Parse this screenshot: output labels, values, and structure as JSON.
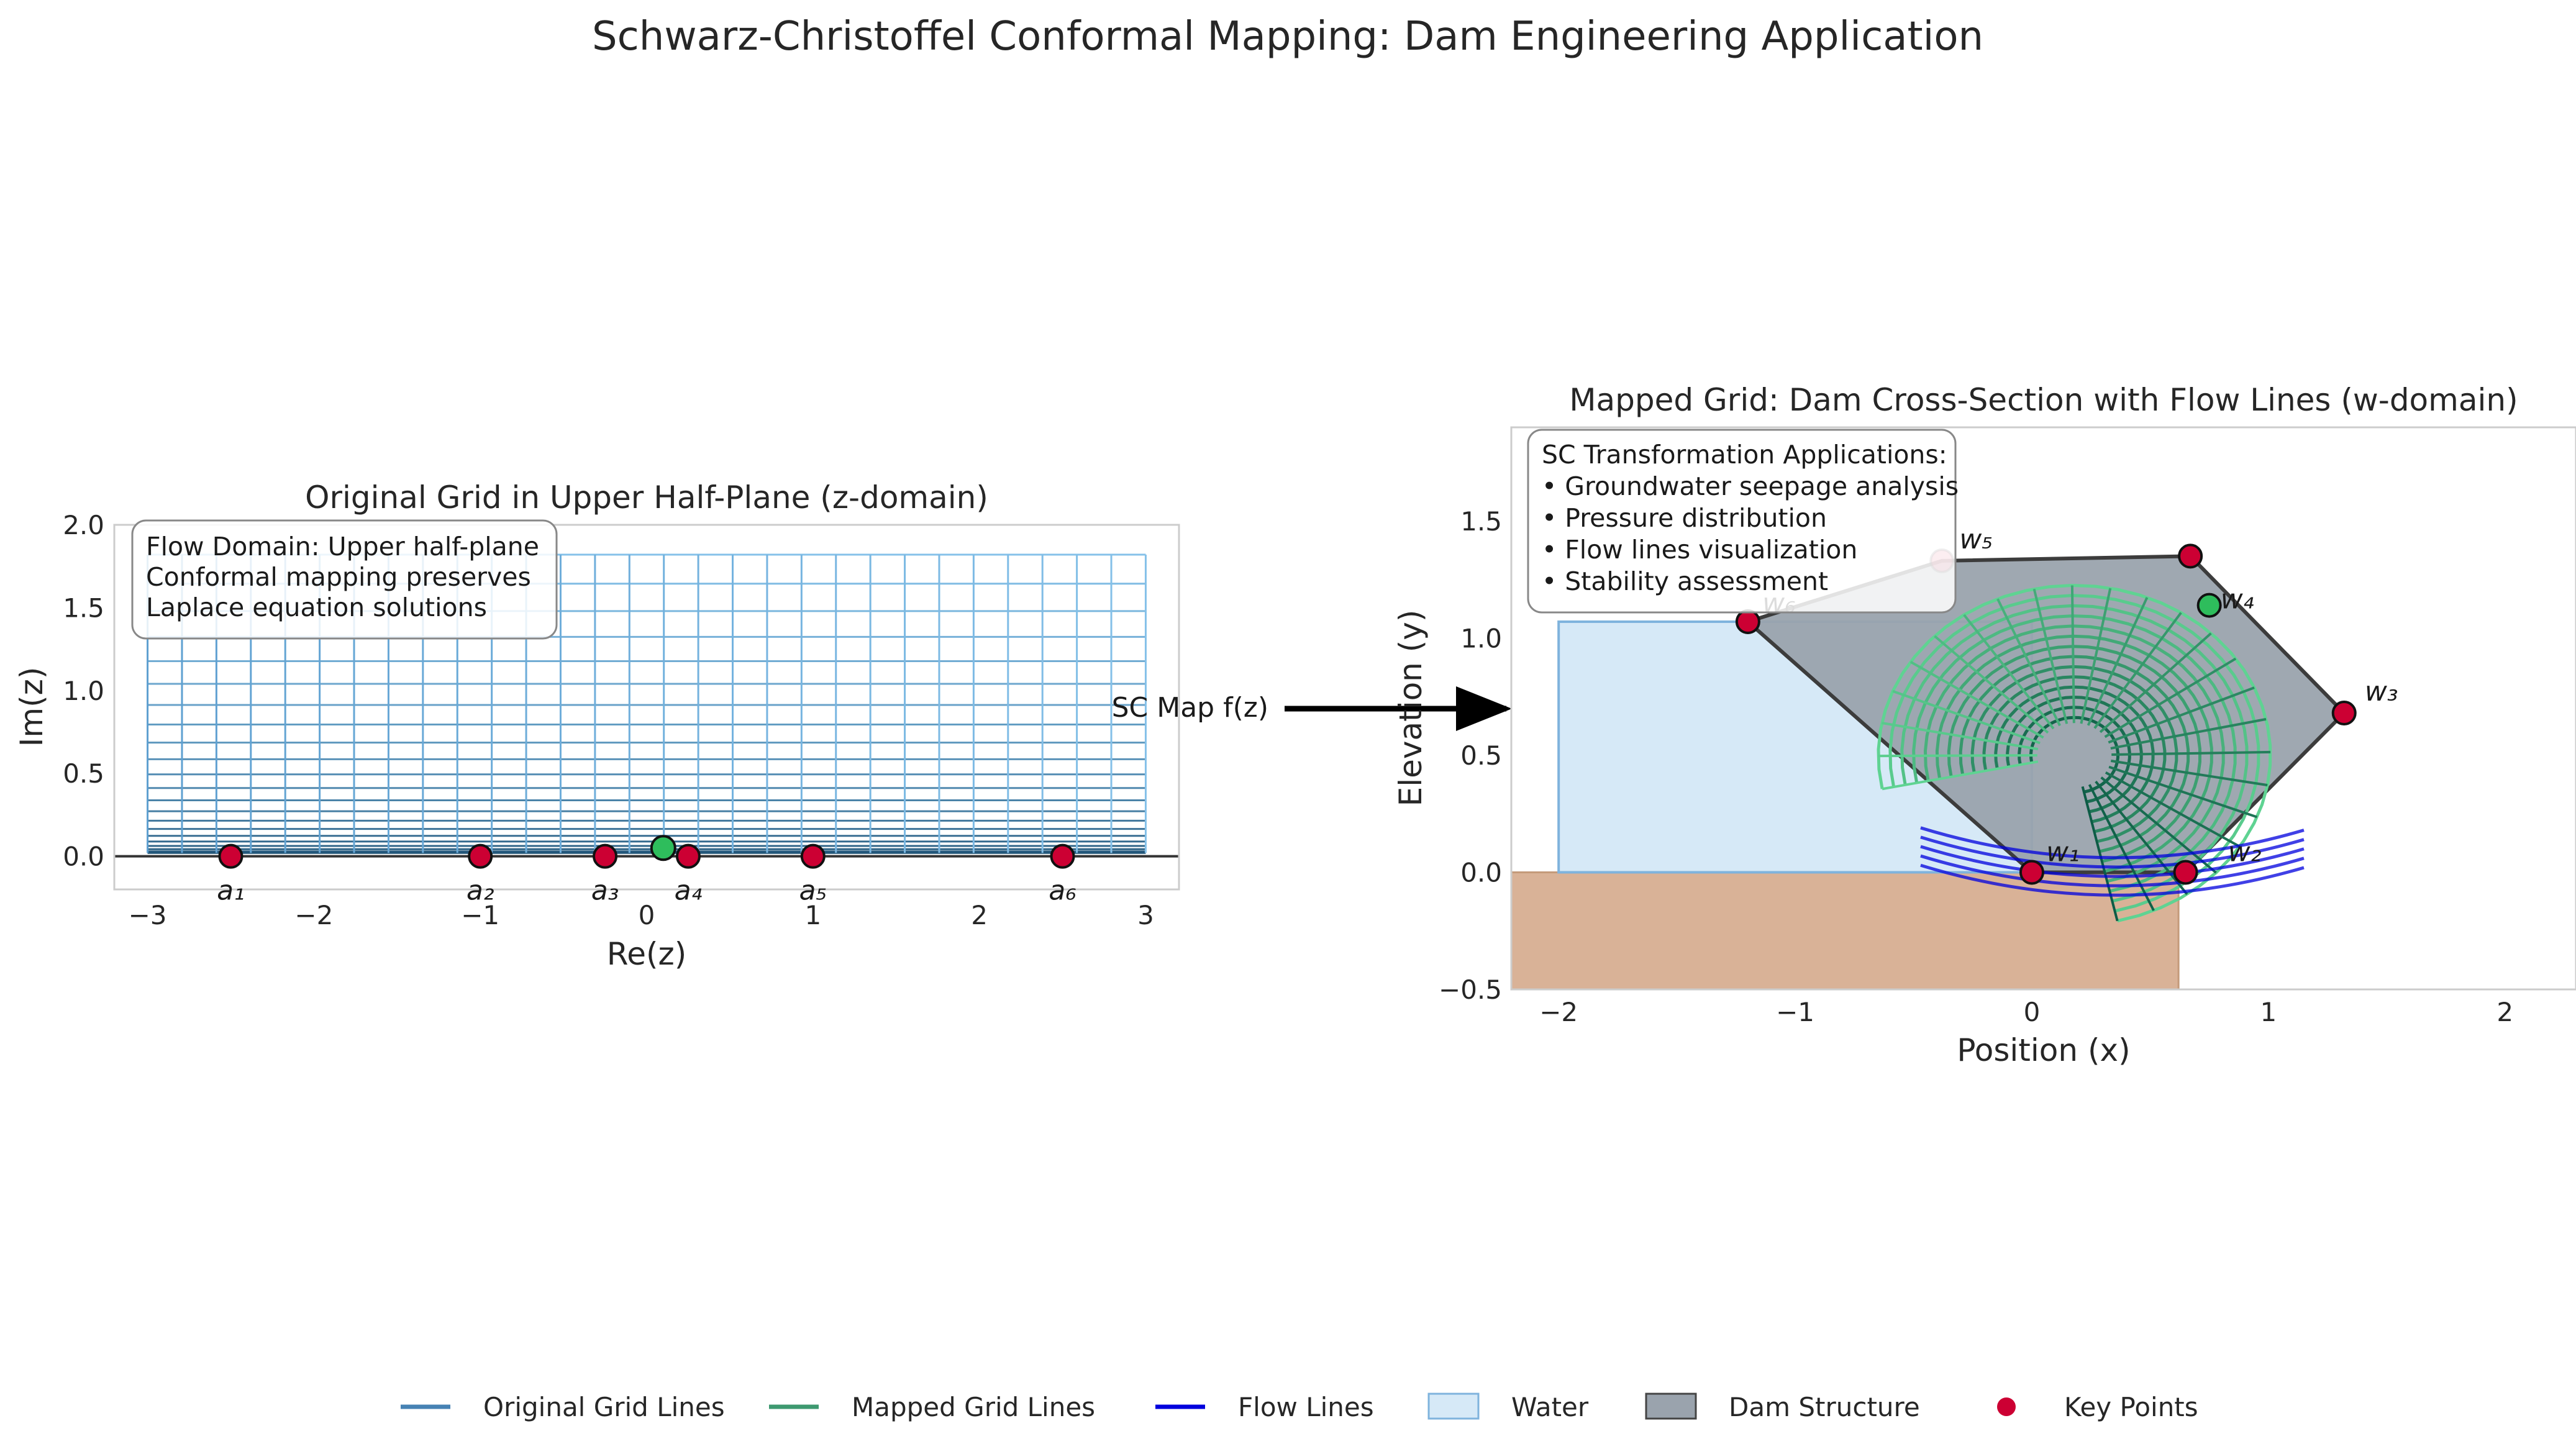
{
  "figure": {
    "title": "Schwarz-Christoffel Conformal Mapping: Dam Engineering Application",
    "arrow_label": "SC Map f(z)"
  },
  "colors": {
    "key_point": "#cc0033",
    "highlight_point": "#2ebd5c",
    "flow": "#0000dd",
    "water_fill": "#d6e9f7",
    "water_edge": "#7fb3dd",
    "dam_fill": "#9aa3ad",
    "ground_fill": "#d9b297",
    "grid_dark": "#1b4f72",
    "grid_light": "#85c1e9",
    "mapped_dark": "#0d5c46",
    "mapped_light": "#5fd392"
  },
  "left_panel": {
    "title": "Original Grid in Upper Half-Plane (z-domain)",
    "xlabel": "Re(z)",
    "ylabel": "Im(z)",
    "xlim": [
      -3.2,
      3.2
    ],
    "ylim": [
      -0.2,
      2.0
    ],
    "xticks": [
      "−3",
      "−2",
      "−1",
      "0",
      "1",
      "2",
      "3"
    ],
    "yticks": [
      "0.0",
      "0.5",
      "1.0",
      "1.5",
      "2.0"
    ],
    "annotation": [
      "Flow Domain: Upper half-plane",
      "Conformal mapping preserves",
      "Laplace equation solutions"
    ],
    "prevertices": [
      {
        "label": "a₁",
        "x": -2.5,
        "y": 0
      },
      {
        "label": "a₂",
        "x": -1.0,
        "y": 0
      },
      {
        "label": "a₃",
        "x": -0.25,
        "y": 0
      },
      {
        "label": "a₄",
        "x": 0.25,
        "y": 0
      },
      {
        "label": "a₅",
        "x": 1.0,
        "y": 0
      },
      {
        "label": "a₆",
        "x": 2.5,
        "y": 0
      }
    ],
    "highlight": {
      "x": 0.1,
      "y": 0.05
    }
  },
  "right_panel": {
    "title": "Mapped Grid: Dam Cross-Section with Flow Lines (w-domain)",
    "xlabel": "Position (x)",
    "ylabel": "Elevation (y)",
    "xlim": [
      -2.2,
      2.3
    ],
    "ylim": [
      -0.5,
      1.9
    ],
    "xticks": [
      "−2",
      "−1",
      "0",
      "1",
      "2"
    ],
    "yticks": [
      "−0.5",
      "0.0",
      "0.5",
      "1.0",
      "1.5"
    ],
    "annotation": [
      "SC Transformation Applications:",
      "• Groundwater seepage analysis",
      "• Pressure distribution",
      "• Flow lines visualization",
      "• Stability assessment"
    ],
    "vertices": [
      {
        "label": "w₁",
        "x": 0.0,
        "y": 0.0
      },
      {
        "label": "w₂",
        "x": 0.65,
        "y": 0.0
      },
      {
        "label": "w₃",
        "x": 1.32,
        "y": 0.68
      },
      {
        "label": "w₄",
        "x": 0.75,
        "y": 1.14
      },
      {
        "label": "w₅",
        "x": -0.38,
        "y": 1.33
      },
      {
        "label": "w₆",
        "x": -1.2,
        "y": 1.07
      }
    ],
    "extra_vertex": {
      "x": 0.67,
      "y": 1.35
    },
    "water": {
      "x0": -2.0,
      "x1": 0.0,
      "y0": 0.0,
      "y1": 1.07
    },
    "ground": {
      "x0": -2.2,
      "x1": 0.62,
      "y0": -0.5,
      "y1": 0.0
    }
  },
  "legend": [
    {
      "label": "Original Grid Lines",
      "kind": "line",
      "color": "#4682b4"
    },
    {
      "label": "Mapped Grid Lines",
      "kind": "line",
      "color": "#3d9970"
    },
    {
      "label": "Flow Lines",
      "kind": "line",
      "color": "#0000dd"
    },
    {
      "label": "Water",
      "kind": "patch",
      "color": "#d6e9f7",
      "edge": "#7fb3dd"
    },
    {
      "label": "Dam Structure",
      "kind": "patch",
      "color": "#9aa3ad",
      "edge": "#444444"
    },
    {
      "label": "Key Points",
      "kind": "dot",
      "color": "#cc0033"
    }
  ]
}
